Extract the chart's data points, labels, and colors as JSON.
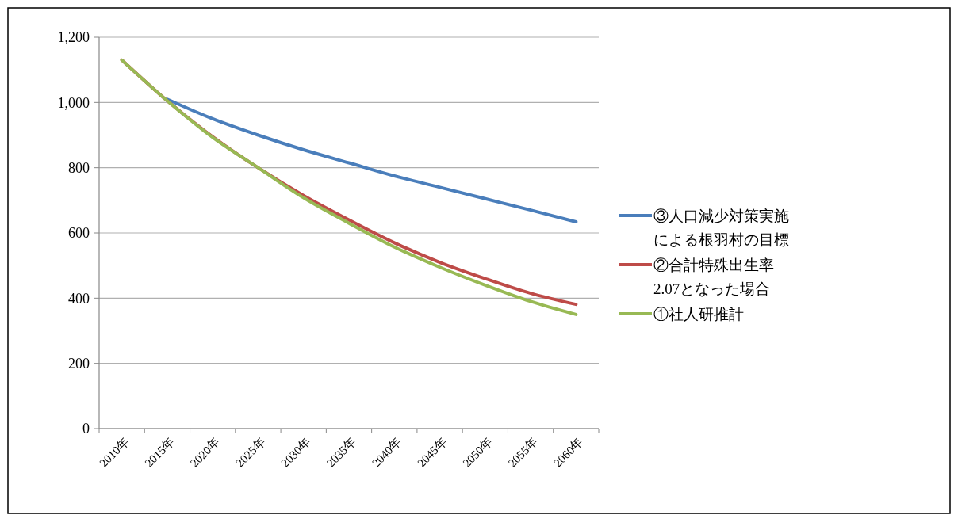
{
  "chart_data": {
    "type": "line",
    "categories": [
      "2010年",
      "2015年",
      "2020年",
      "2025年",
      "2030年",
      "2035年",
      "2040年",
      "2045年",
      "2050年",
      "2055年",
      "2060年"
    ],
    "series": [
      {
        "name": "③人口減少対策実施による根羽村の目標",
        "color": "#4a7ebb",
        "values": [
          null,
          1010,
          950,
          900,
          855,
          815,
          775,
          740,
          705,
          670,
          634
        ]
      },
      {
        "name": "②合計特殊出生率2.07となった場合",
        "color": "#be4b48",
        "values": [
          1130,
          1005,
          895,
          800,
          715,
          640,
          570,
          510,
          460,
          415,
          381
        ]
      },
      {
        "name": "①社人研推計",
        "color": "#98b954",
        "values": [
          1130,
          1005,
          893,
          800,
          708,
          630,
          557,
          495,
          440,
          390,
          350
        ]
      }
    ],
    "ylim": [
      0,
      1200
    ],
    "yticks": [
      {
        "value": 0,
        "label": "0"
      },
      {
        "value": 200,
        "label": "200"
      },
      {
        "value": 400,
        "label": "400"
      },
      {
        "value": 600,
        "label": "600"
      },
      {
        "value": 800,
        "label": "800"
      },
      {
        "value": 1000,
        "label": "1,000"
      },
      {
        "value": 1200,
        "label": "1,200"
      }
    ],
    "grid": "y",
    "legend": "right",
    "marker": "none",
    "line_style": "solid"
  }
}
